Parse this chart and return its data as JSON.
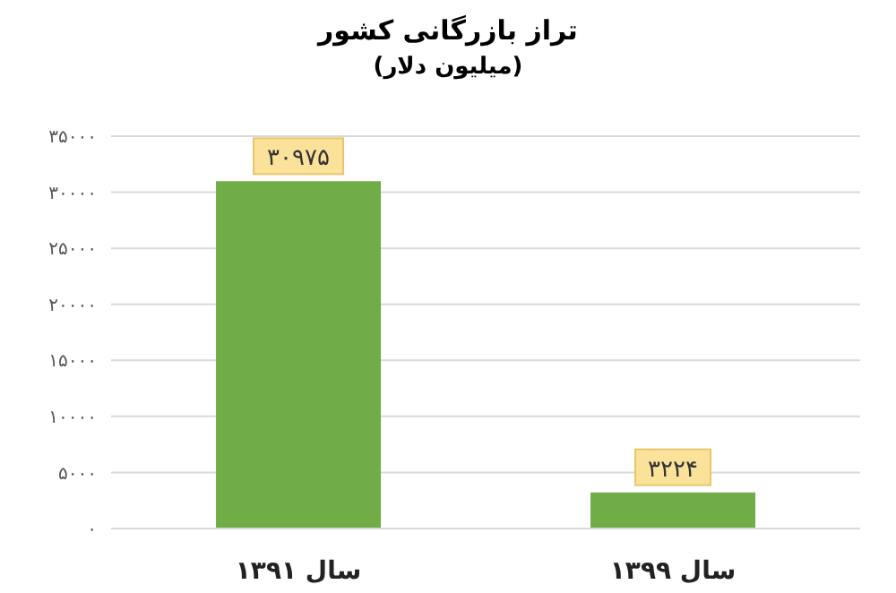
{
  "chart_data": {
    "type": "bar",
    "title": "تراز بازرگانی کشور",
    "subtitle": "(میلیون دلار)",
    "categories": [
      "سال ۱۳۹۱",
      "سال ۱۳۹۹"
    ],
    "values": [
      30975,
      3224
    ],
    "value_labels": [
      "۳۰۹۷۵",
      "۳۲۲۴"
    ],
    "color": "#70ad47",
    "ylim": [
      0,
      35000
    ],
    "yticks": [
      {
        "value": 0,
        "label": "۰"
      },
      {
        "value": 5000,
        "label": "۵۰۰۰"
      },
      {
        "value": 10000,
        "label": "۱۰۰۰۰"
      },
      {
        "value": 15000,
        "label": "۱۵۰۰۰"
      },
      {
        "value": 20000,
        "label": "۲۰۰۰۰"
      },
      {
        "value": 25000,
        "label": "۲۵۰۰۰"
      },
      {
        "value": 30000,
        "label": "۳۰۰۰۰"
      },
      {
        "value": 35000,
        "label": "۳۵۰۰۰"
      }
    ],
    "grid": "y",
    "legend": false
  }
}
